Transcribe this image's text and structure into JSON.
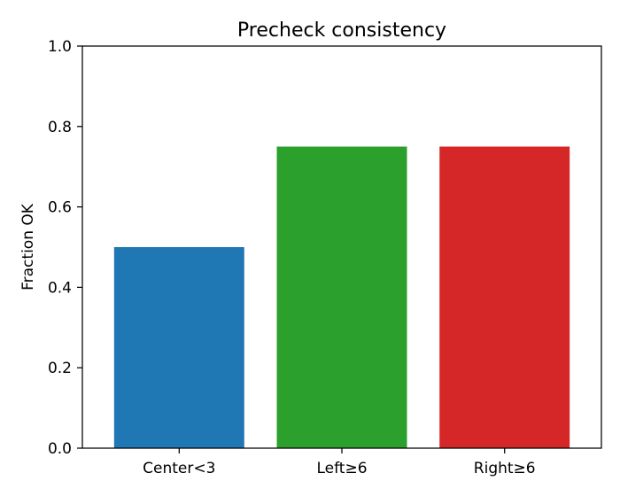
{
  "chart_data": {
    "type": "bar",
    "title": "Precheck consistency",
    "xlabel": "",
    "ylabel": "Fraction OK",
    "categories": [
      "Center<3",
      "Left≥6",
      "Right≥6"
    ],
    "values": [
      0.5,
      0.75,
      0.75
    ],
    "colors": [
      "#1f77b4",
      "#2ca02c",
      "#d62728"
    ],
    "ylim": [
      0,
      1.0
    ],
    "yticks": [
      0.0,
      0.2,
      0.4,
      0.6,
      0.8,
      1.0
    ],
    "ytick_labels": [
      "0.0",
      "0.2",
      "0.4",
      "0.6",
      "0.8",
      "1.0"
    ],
    "grid": false,
    "legend": false
  }
}
